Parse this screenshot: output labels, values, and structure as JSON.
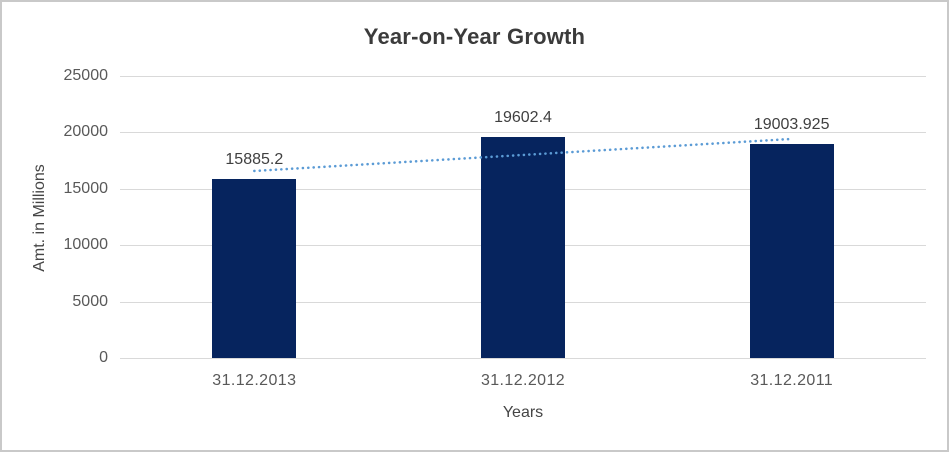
{
  "chart_data": {
    "type": "bar",
    "title": "Year-on-Year Growth",
    "xlabel": "Years",
    "ylabel": "Amt. in Millions",
    "categories": [
      "31.12.2013",
      "31.12.2012",
      "31.12.2011"
    ],
    "values": [
      15885.2,
      19602.4,
      19003.925
    ],
    "data_labels": [
      "15885.2",
      "19602.4",
      "19003.925"
    ],
    "yticks": [
      0,
      5000,
      10000,
      15000,
      20000,
      25000
    ],
    "ytick_labels": [
      "0",
      "5000",
      "10000",
      "15000",
      "20000",
      "25000"
    ],
    "ylim": [
      0,
      25000
    ],
    "grid": "horizontal",
    "legend": "none",
    "trendline": {
      "type": "linear",
      "style": "round-dotted",
      "start_value": 16580,
      "end_value": 19420
    },
    "colors": {
      "bar": "#06245E",
      "trendline": "#5B9BD5",
      "gridline": "#D9D9D9",
      "title_text": "#3B3B3B",
      "tick_text": "#595959",
      "data_label_text": "#404040",
      "axis_title_text": "#454545",
      "frame_border": "#C9C9C9",
      "background": "#FFFFFF"
    }
  }
}
